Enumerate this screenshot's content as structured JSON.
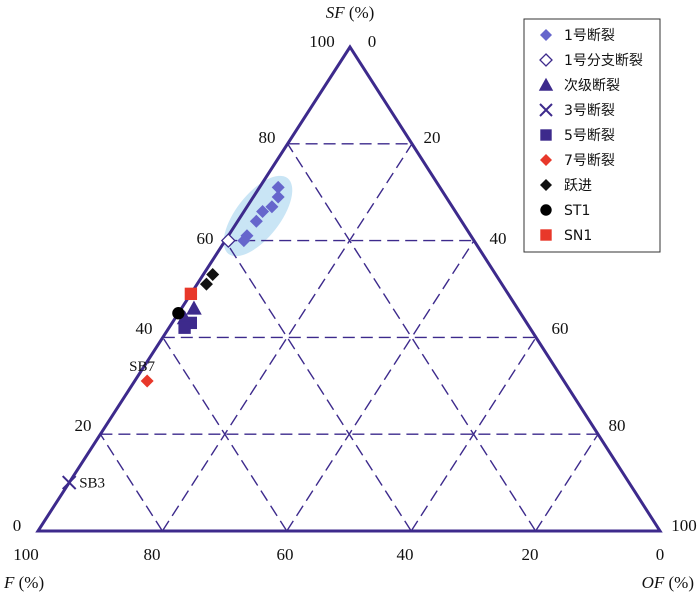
{
  "chart_data": {
    "type": "scatter",
    "plot_kind": "ternary",
    "title": "",
    "axes": {
      "top": {
        "name": "SF",
        "unit": "(%)"
      },
      "left": {
        "name": "F",
        "unit": "(%)"
      },
      "right": {
        "name": "OF",
        "unit": "(%)"
      }
    },
    "ticks": {
      "left_edge": [
        "100",
        "80",
        "60",
        "40",
        "20",
        "0"
      ],
      "top_right": [
        "0",
        "20",
        "40",
        "60",
        "80",
        "100"
      ],
      "bottom": [
        "100",
        "80",
        "60",
        "40",
        "20",
        "0"
      ]
    },
    "grid": true,
    "grid_style": "dashed",
    "legend_position": "top-right",
    "colors": {
      "frame": "#3d2a8c",
      "grid": "#3d2a8c",
      "fault": "#3d2a8c",
      "fault7": "#e8382a",
      "leap": "#111111",
      "st1": "#000000",
      "sn1": "#e8382a",
      "ellipse": "#bfe0f3",
      "text": "#111111"
    },
    "series": [
      {
        "name": "1号断裂",
        "marker": "diamond-filled",
        "color": "#6666cc",
        "points": [
          {
            "SF": 71,
            "OF": 3
          },
          {
            "SF": 69,
            "OF": 4
          },
          {
            "SF": 67,
            "OF": 4
          },
          {
            "SF": 66,
            "OF": 3
          },
          {
            "SF": 64,
            "OF": 3
          },
          {
            "SF": 61,
            "OF": 3
          },
          {
            "SF": 60,
            "OF": 3
          }
        ]
      },
      {
        "name": "1号分支断裂",
        "marker": "diamond-open",
        "color": "#3d2a8c",
        "points": [
          {
            "SF": 60,
            "OF": 0.5
          }
        ]
      },
      {
        "name": "次级断裂",
        "marker": "triangle",
        "color": "#3d2a8c",
        "points": [
          {
            "SF": 46,
            "OF": 2
          },
          {
            "SF": 44,
            "OF": 1.5
          }
        ]
      },
      {
        "name": "3号断裂",
        "marker": "x",
        "color": "#3d2a8c",
        "points": [
          {
            "SF": 10,
            "OF": 0
          }
        ]
      },
      {
        "name": "5号断裂",
        "marker": "square",
        "color": "#3d2a8c",
        "points": [
          {
            "SF": 43,
            "OF": 3
          },
          {
            "SF": 42,
            "OF": 2.5
          }
        ]
      },
      {
        "name": "7号断裂",
        "marker": "diamond-filled",
        "color": "#e8382a",
        "points": [
          {
            "SF": 31,
            "OF": 2
          }
        ]
      },
      {
        "name": "跃进",
        "marker": "diamond-filled",
        "color": "#111111",
        "points": [
          {
            "SF": 53,
            "OF": 1.5
          },
          {
            "SF": 51,
            "OF": 1.5
          }
        ]
      },
      {
        "name": "ST1",
        "marker": "circle",
        "color": "#000000",
        "points": [
          {
            "SF": 45,
            "OF": 0
          }
        ]
      },
      {
        "name": "SN1",
        "marker": "square",
        "color": "#e8382a",
        "points": [
          {
            "SF": 49,
            "OF": 0
          }
        ]
      }
    ],
    "annotations": [
      {
        "text": "SB7",
        "target_series": "7号断裂"
      },
      {
        "text": "SB3",
        "target_series": "3号断裂"
      }
    ]
  }
}
